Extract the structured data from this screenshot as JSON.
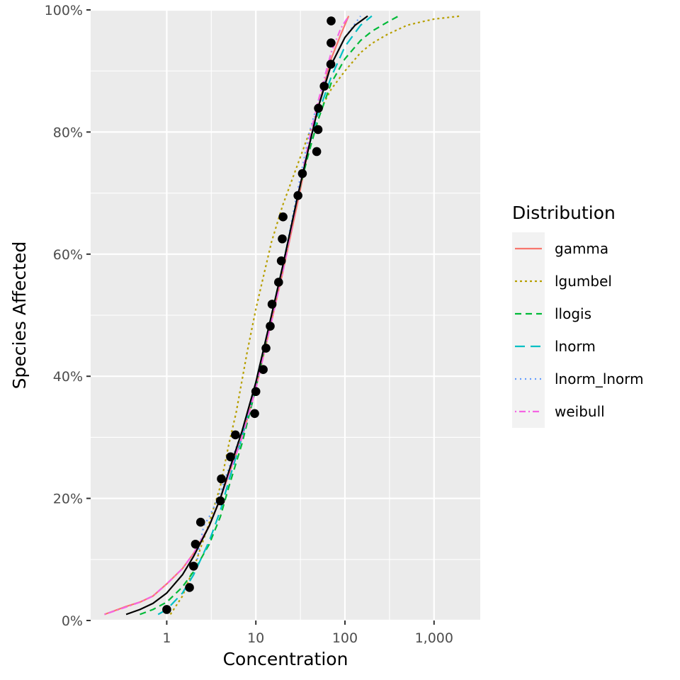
{
  "chart_data": {
    "type": "line",
    "xlabel": "Concentration",
    "ylabel": "Species Affected",
    "x_scale": "log10",
    "xlim": [
      0.14,
      3300
    ],
    "ylim": [
      0,
      100
    ],
    "x_ticks": [
      {
        "value": 1,
        "label": "1"
      },
      {
        "value": 10,
        "label": "10"
      },
      {
        "value": 100,
        "label": "100"
      },
      {
        "value": 1000,
        "label": "1,000"
      }
    ],
    "y_ticks": [
      {
        "value": 0,
        "label": "0%"
      },
      {
        "value": 20,
        "label": "20%"
      },
      {
        "value": 40,
        "label": "40%"
      },
      {
        "value": 60,
        "label": "60%"
      },
      {
        "value": 80,
        "label": "80%"
      },
      {
        "value": 100,
        "label": "100%"
      }
    ],
    "grid": true,
    "legend": {
      "title": "Distribution",
      "position": "right",
      "entries": [
        {
          "label": "gamma",
          "color": "#F8766D",
          "dash": "solid"
        },
        {
          "label": "lgumbel",
          "color": "#B79F00",
          "dash": "dotted"
        },
        {
          "label": "llogis",
          "color": "#00BA38",
          "dash": "dashed"
        },
        {
          "label": "lnorm",
          "color": "#00BFC4",
          "dash": "longdash"
        },
        {
          "label": "lnorm_lnorm",
          "color": "#619CFF",
          "dash": "dots"
        },
        {
          "label": "weibull",
          "color": "#F564E3",
          "dash": "dotdash"
        }
      ]
    },
    "series": [
      {
        "name": "gamma",
        "color": "#F8766D",
        "x": [
          0.2,
          0.35,
          0.5,
          0.7,
          1.0,
          1.5,
          2,
          3,
          4,
          5,
          7,
          10,
          15,
          20,
          30,
          40,
          50,
          70,
          90,
          110
        ],
        "y": [
          1,
          2.3,
          3,
          4,
          6,
          8.5,
          11,
          15.5,
          20,
          24,
          30,
          38,
          49,
          57,
          69,
          78,
          84,
          92,
          96,
          99
        ]
      },
      {
        "name": "lgumbel",
        "color": "#B79F00",
        "x": [
          1.1,
          1.5,
          2,
          3,
          4,
          5,
          6,
          8,
          10,
          12,
          15,
          20,
          30,
          40,
          50,
          70,
          100,
          150,
          200,
          300,
          500,
          700,
          1000,
          2000
        ],
        "y": [
          1,
          4,
          8.5,
          16,
          22,
          29,
          34,
          44,
          51,
          56,
          62,
          68,
          75,
          80,
          83,
          87,
          90,
          93,
          94.5,
          96,
          97.5,
          98,
          98.5,
          99
        ]
      },
      {
        "name": "llogis",
        "color": "#00BA38",
        "x": [
          0.5,
          0.7,
          1.0,
          1.5,
          2,
          3,
          4,
          5,
          7,
          10,
          15,
          20,
          30,
          40,
          50,
          70,
          100,
          150,
          200,
          300,
          400
        ],
        "y": [
          1,
          1.8,
          3,
          5.5,
          8,
          12.5,
          17,
          22,
          29,
          38,
          50,
          58,
          70,
          77,
          82,
          88,
          92,
          95,
          96.5,
          98,
          99
        ]
      },
      {
        "name": "lnorm",
        "color": "#00BFC4",
        "x": [
          0.8,
          1.0,
          1.5,
          2,
          3,
          4,
          5,
          7,
          10,
          15,
          20,
          30,
          40,
          50,
          70,
          100,
          150,
          200
        ],
        "y": [
          1,
          1.8,
          4.5,
          7.5,
          13,
          18,
          23,
          30,
          39,
          50,
          58,
          70,
          78,
          83,
          89,
          94,
          97.5,
          99
        ]
      },
      {
        "name": "lnorm_lnorm",
        "color": "#619CFF",
        "x": [
          2.2,
          2.4,
          2.6,
          3,
          3.5,
          4,
          5,
          7,
          10,
          15,
          20,
          30,
          40,
          50,
          70,
          100,
          150
        ],
        "y": [
          10,
          13,
          15.5,
          17,
          19,
          21,
          25,
          31,
          39,
          50,
          58,
          71,
          80,
          85,
          91,
          95.5,
          99
        ]
      },
      {
        "name": "weibull",
        "color": "#F564E3",
        "x": [
          0.2,
          0.35,
          0.5,
          0.7,
          1.0,
          1.5,
          2,
          3,
          4,
          5,
          7,
          10,
          15,
          20,
          30,
          40,
          50,
          70,
          90,
          110
        ],
        "y": [
          1,
          2.2,
          3,
          4,
          6,
          8.5,
          11,
          15.5,
          20,
          24,
          30,
          38,
          49,
          57,
          70,
          79,
          85,
          93,
          97,
          99
        ]
      },
      {
        "name": "",
        "color": "#000000",
        "x": [
          0.35,
          0.5,
          0.7,
          1.0,
          1.5,
          2,
          3,
          4,
          5,
          7,
          10,
          15,
          20,
          30,
          40,
          50,
          70,
          100,
          130,
          180
        ],
        "y": [
          1,
          1.8,
          2.8,
          4.5,
          7.5,
          10.5,
          15.5,
          20,
          24.5,
          31,
          39,
          50,
          58,
          70,
          78,
          84,
          91,
          95.5,
          97.5,
          99
        ]
      }
    ],
    "points": {
      "name": "observed",
      "color": "#000000",
      "x": [
        1.0,
        1.8,
        2.0,
        2.1,
        2.4,
        4.0,
        4.1,
        5.2,
        5.9,
        9.7,
        10.0,
        12.1,
        13.0,
        14.5,
        15.2,
        18.0,
        19.3,
        19.8,
        20.2,
        29.7,
        33.3,
        48.2,
        49.9,
        50.4,
        58.5,
        69.4,
        69.8,
        70.0
      ],
      "y": [
        1.8,
        5.4,
        8.9,
        12.5,
        16.1,
        19.6,
        23.2,
        26.8,
        30.4,
        33.9,
        37.5,
        41.1,
        44.6,
        48.2,
        51.8,
        55.4,
        58.9,
        62.5,
        66.1,
        69.6,
        73.2,
        76.8,
        80.4,
        83.9,
        87.5,
        91.1,
        94.6,
        98.2
      ]
    }
  }
}
